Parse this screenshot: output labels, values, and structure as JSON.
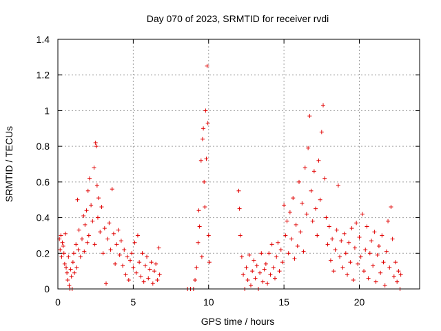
{
  "chart_data": {
    "type": "scatter",
    "title": "Day 070 of 2023, SRMTID for receiver rvdi",
    "xlabel": "GPS time / hours",
    "ylabel": "SRMTID / TECUs",
    "xlim": [
      0,
      24
    ],
    "ylim": [
      0,
      1.4
    ],
    "x_ticks": [
      0,
      5,
      10,
      15,
      20
    ],
    "x_tick_labels": [
      "0",
      "5",
      "10",
      "15",
      "20"
    ],
    "y_ticks": [
      0,
      0.2,
      0.4,
      0.6,
      0.8,
      1.0,
      1.2,
      1.4
    ],
    "y_tick_labels": [
      "0",
      "0.2",
      "0.4",
      "0.6",
      "0.8",
      "1",
      "1.2",
      "1.4"
    ],
    "grid": true,
    "marker": "+",
    "marker_color": "#e00000",
    "series": [
      {
        "name": "SRMTID",
        "points": [
          [
            0.1,
            0.28
          ],
          [
            0.15,
            0.22
          ],
          [
            0.2,
            0.3
          ],
          [
            0.25,
            0.18
          ],
          [
            0.3,
            0.26
          ],
          [
            0.35,
            0.24
          ],
          [
            0.4,
            0.2
          ],
          [
            0.45,
            0.14
          ],
          [
            0.5,
            0.31
          ],
          [
            0.55,
            0.12
          ],
          [
            0.6,
            0.09
          ],
          [
            0.65,
            0.05
          ],
          [
            0.7,
            0.18
          ],
          [
            0.75,
            0.02
          ],
          [
            0.8,
            0.0
          ],
          [
            0.85,
            0.11
          ],
          [
            0.9,
            0.07
          ],
          [
            0.95,
            0.0
          ],
          [
            1.0,
            0.15
          ],
          [
            1.05,
            0.2
          ],
          [
            1.1,
            0.09
          ],
          [
            1.2,
            0.25
          ],
          [
            1.25,
            0.12
          ],
          [
            1.3,
            0.5
          ],
          [
            1.35,
            0.22
          ],
          [
            1.4,
            0.33
          ],
          [
            1.5,
            0.18
          ],
          [
            1.6,
            0.28
          ],
          [
            1.7,
            0.41
          ],
          [
            1.75,
            0.21
          ],
          [
            1.8,
            0.36
          ],
          [
            1.9,
            0.44
          ],
          [
            1.95,
            0.26
          ],
          [
            2.0,
            0.55
          ],
          [
            2.05,
            0.3
          ],
          [
            2.1,
            0.62
          ],
          [
            2.2,
            0.47
          ],
          [
            2.3,
            0.38
          ],
          [
            2.4,
            0.68
          ],
          [
            2.45,
            0.25
          ],
          [
            2.5,
            0.82
          ],
          [
            2.55,
            0.8
          ],
          [
            2.6,
            0.58
          ],
          [
            2.65,
            0.4
          ],
          [
            2.7,
            0.51
          ],
          [
            2.8,
            0.32
          ],
          [
            2.9,
            0.46
          ],
          [
            3.0,
            0.2
          ],
          [
            3.1,
            0.34
          ],
          [
            3.2,
            0.03
          ],
          [
            3.3,
            0.28
          ],
          [
            3.4,
            0.37
          ],
          [
            3.5,
            0.22
          ],
          [
            3.6,
            0.56
          ],
          [
            3.7,
            0.31
          ],
          [
            3.8,
            0.14
          ],
          [
            3.9,
            0.25
          ],
          [
            4.0,
            0.33
          ],
          [
            4.1,
            0.19
          ],
          [
            4.2,
            0.27
          ],
          [
            4.3,
            0.13
          ],
          [
            4.4,
            0.22
          ],
          [
            4.5,
            0.08
          ],
          [
            4.6,
            0.18
          ],
          [
            4.7,
            0.05
          ],
          [
            4.8,
            0.16
          ],
          [
            4.9,
            0.2
          ],
          [
            5.0,
            0.12
          ],
          [
            5.1,
            0.26
          ],
          [
            5.2,
            0.09
          ],
          [
            5.3,
            0.3
          ],
          [
            5.4,
            0.15
          ],
          [
            5.5,
            0.07
          ],
          [
            5.6,
            0.2
          ],
          [
            5.7,
            0.04
          ],
          [
            5.8,
            0.13
          ],
          [
            5.9,
            0.18
          ],
          [
            6.0,
            0.06
          ],
          [
            6.1,
            0.11
          ],
          [
            6.2,
            0.15
          ],
          [
            6.3,
            0.03
          ],
          [
            6.4,
            0.1
          ],
          [
            6.5,
            0.14
          ],
          [
            6.6,
            0.05
          ],
          [
            6.7,
            0.23
          ],
          [
            6.75,
            0.08
          ],
          [
            8.6,
            0.0
          ],
          [
            8.8,
            0.0
          ],
          [
            9.0,
            0.0
          ],
          [
            9.1,
            0.05
          ],
          [
            9.2,
            0.12
          ],
          [
            9.3,
            0.26
          ],
          [
            9.35,
            0.44
          ],
          [
            9.4,
            0.35
          ],
          [
            9.5,
            0.72
          ],
          [
            9.55,
            0.18
          ],
          [
            9.6,
            0.84
          ],
          [
            9.65,
            0.9
          ],
          [
            9.7,
            0.6
          ],
          [
            9.75,
            0.46
          ],
          [
            9.8,
            1.0
          ],
          [
            9.85,
            0.73
          ],
          [
            9.9,
            1.25
          ],
          [
            9.95,
            0.93
          ],
          [
            10.0,
            0.3
          ],
          [
            10.05,
            0.15
          ],
          [
            12.0,
            0.55
          ],
          [
            12.05,
            0.45
          ],
          [
            12.1,
            0.3
          ],
          [
            12.2,
            0.18
          ],
          [
            12.3,
            0.08
          ],
          [
            12.4,
            0.0
          ],
          [
            12.5,
            0.12
          ],
          [
            12.6,
            0.05
          ],
          [
            12.7,
            0.19
          ],
          [
            12.8,
            0.02
          ],
          [
            12.9,
            0.1
          ],
          [
            13.0,
            0.16
          ],
          [
            13.1,
            0.06
          ],
          [
            13.2,
            0.13
          ],
          [
            13.3,
            0.0
          ],
          [
            13.4,
            0.09
          ],
          [
            13.5,
            0.2
          ],
          [
            13.6,
            0.04
          ],
          [
            13.7,
            0.11
          ],
          [
            13.8,
            0.14
          ],
          [
            13.9,
            0.03
          ],
          [
            14.0,
            0.2
          ],
          [
            14.1,
            0.08
          ],
          [
            14.2,
            0.25
          ],
          [
            14.3,
            0.12
          ],
          [
            14.4,
            0.06
          ],
          [
            14.5,
            0.18
          ],
          [
            14.6,
            0.26
          ],
          [
            14.7,
            0.1
          ],
          [
            14.8,
            0.22
          ],
          [
            14.9,
            0.15
          ],
          [
            15.0,
            0.47
          ],
          [
            15.1,
            0.3
          ],
          [
            15.2,
            0.38
          ],
          [
            15.3,
            0.2
          ],
          [
            15.4,
            0.43
          ],
          [
            15.5,
            0.28
          ],
          [
            15.6,
            0.51
          ],
          [
            15.7,
            0.17
          ],
          [
            15.8,
            0.36
          ],
          [
            15.9,
            0.24
          ],
          [
            16.0,
            0.6
          ],
          [
            16.1,
            0.32
          ],
          [
            16.2,
            0.48
          ],
          [
            16.3,
            0.21
          ],
          [
            16.4,
            0.68
          ],
          [
            16.5,
            0.42
          ],
          [
            16.6,
            0.79
          ],
          [
            16.7,
            0.97
          ],
          [
            16.8,
            0.55
          ],
          [
            16.9,
            0.38
          ],
          [
            17.0,
            0.66
          ],
          [
            17.1,
            0.45
          ],
          [
            17.2,
            0.3
          ],
          [
            17.3,
            0.72
          ],
          [
            17.4,
            0.5
          ],
          [
            17.5,
            0.88
          ],
          [
            17.6,
            1.03
          ],
          [
            17.7,
            0.62
          ],
          [
            17.8,
            0.4
          ],
          [
            17.9,
            0.25
          ],
          [
            18.0,
            0.35
          ],
          [
            18.1,
            0.16
          ],
          [
            18.2,
            0.28
          ],
          [
            18.3,
            0.1
          ],
          [
            18.4,
            0.22
          ],
          [
            18.5,
            0.33
          ],
          [
            18.6,
            0.58
          ],
          [
            18.7,
            0.18
          ],
          [
            18.8,
            0.27
          ],
          [
            18.9,
            0.12
          ],
          [
            19.0,
            0.31
          ],
          [
            19.1,
            0.2
          ],
          [
            19.2,
            0.08
          ],
          [
            19.3,
            0.26
          ],
          [
            19.4,
            0.15
          ],
          [
            19.5,
            0.34
          ],
          [
            19.6,
            0.05
          ],
          [
            19.7,
            0.23
          ],
          [
            19.8,
            0.37
          ],
          [
            19.9,
            0.14
          ],
          [
            20.0,
            0.29
          ],
          [
            20.1,
            0.18
          ],
          [
            20.2,
            0.42
          ],
          [
            20.3,
            0.1
          ],
          [
            20.4,
            0.22
          ],
          [
            20.5,
            0.35
          ],
          [
            20.6,
            0.06
          ],
          [
            20.7,
            0.2
          ],
          [
            20.8,
            0.27
          ],
          [
            20.9,
            0.13
          ],
          [
            21.0,
            0.32
          ],
          [
            21.1,
            0.04
          ],
          [
            21.2,
            0.19
          ],
          [
            21.3,
            0.24
          ],
          [
            21.4,
            0.09
          ],
          [
            21.5,
            0.3
          ],
          [
            21.6,
            0.15
          ],
          [
            21.7,
            0.02
          ],
          [
            21.8,
            0.21
          ],
          [
            21.9,
            0.38
          ],
          [
            22.0,
            0.12
          ],
          [
            22.1,
            0.46
          ],
          [
            22.2,
            0.28
          ],
          [
            22.3,
            0.07
          ],
          [
            22.4,
            0.15
          ],
          [
            22.5,
            0.04
          ],
          [
            22.6,
            0.1
          ],
          [
            22.7,
            0.0
          ],
          [
            22.75,
            0.08
          ]
        ]
      }
    ]
  }
}
